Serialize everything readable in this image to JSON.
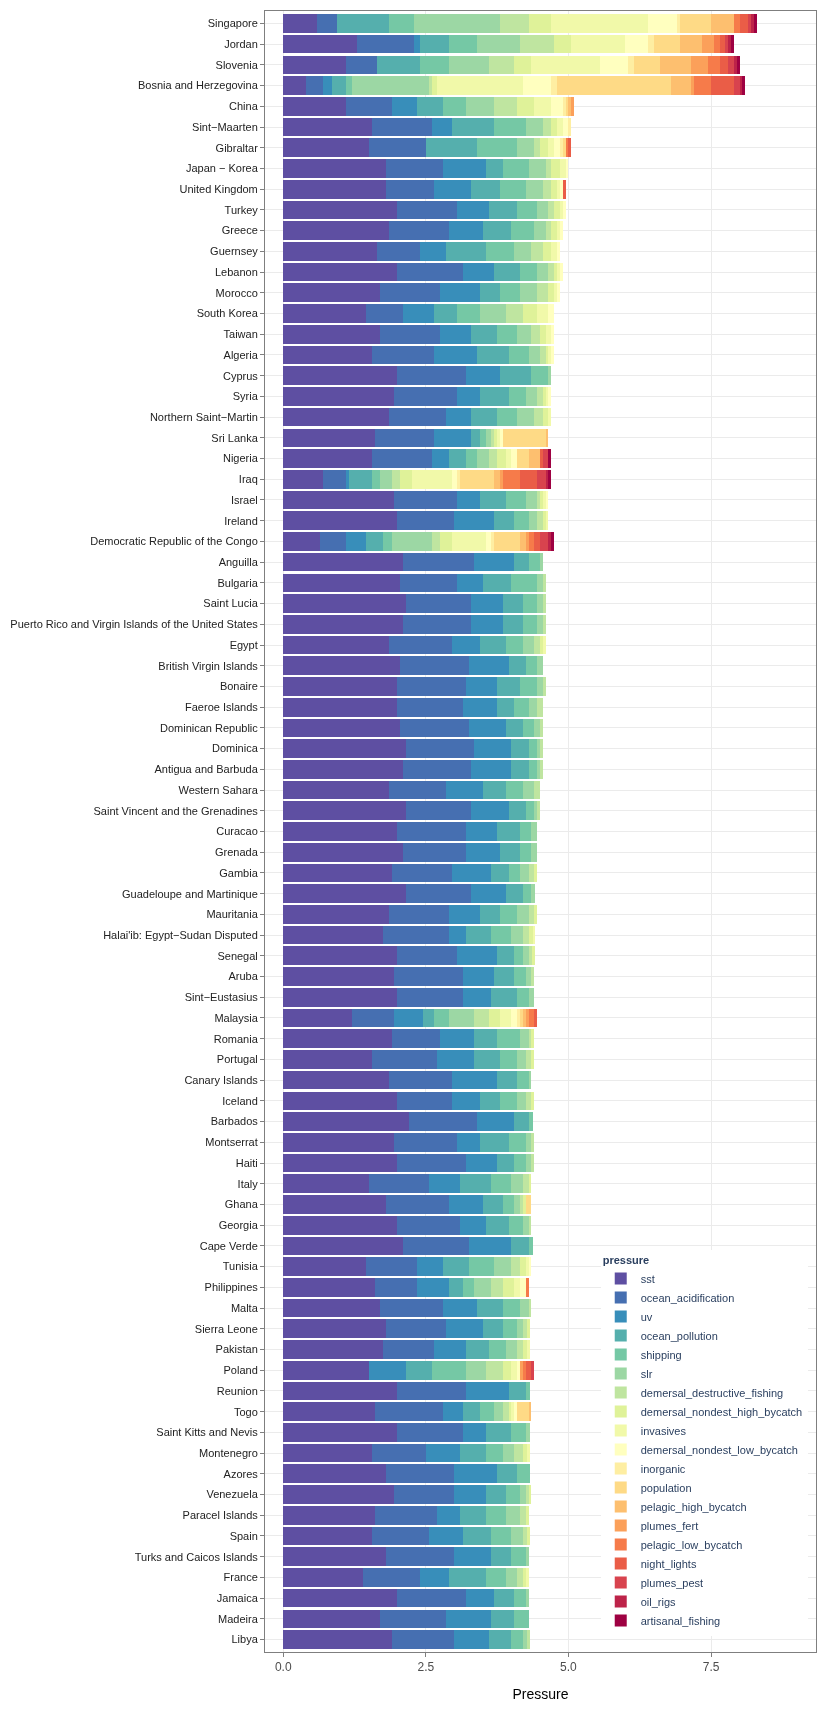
{
  "chart_data": {
    "type": "bar",
    "orientation": "horizontal",
    "stacked": true,
    "xlabel": "Pressure",
    "legend_title": "pressure",
    "legend": "bottom right",
    "grid": true,
    "xlim": [
      -0.32,
      9.34
    ],
    "xticks": [
      {
        "value": 0,
        "label": "0.0"
      },
      2.5,
      {
        "value": 5,
        "label": "5.0"
      },
      7.5
    ],
    "categories": [
      "Singapore",
      "Jordan",
      "Slovenia",
      "Bosnia and Herzegovina",
      "China",
      "Sint−Maarten",
      "Gibraltar",
      "Japan − Korea",
      "United Kingdom",
      "Turkey",
      "Greece",
      "Guernsey",
      "Lebanon",
      "Morocco",
      "South Korea",
      "Taiwan",
      "Algeria",
      "Cyprus",
      "Syria",
      "Northern Saint−Martin",
      "Sri Lanka",
      "Nigeria",
      "Iraq",
      "Israel",
      "Ireland",
      "Democratic Republic of the Congo",
      "Anguilla",
      "Bulgaria",
      "Saint Lucia",
      "Puerto Rico and Virgin Islands of the United States",
      "Egypt",
      "British Virgin Islands",
      "Bonaire",
      "Faeroe Islands",
      "Dominican Republic",
      "Dominica",
      "Antigua and Barbuda",
      "Western Sahara",
      "Saint Vincent and the Grenadines",
      "Curacao",
      "Grenada",
      "Gambia",
      "Guadeloupe and Martinique",
      "Mauritania",
      "Halai'ib: Egypt−Sudan Disputed",
      "Senegal",
      "Aruba",
      "Sint−Eustasius",
      "Malaysia",
      "Romania",
      "Portugal",
      "Canary Islands",
      "Iceland",
      "Barbados",
      "Montserrat",
      "Haiti",
      "Italy",
      "Ghana",
      "Georgia",
      "Cape Verde",
      "Tunisia",
      "Philippines",
      "Malta",
      "Sierra Leone",
      "Pakistan",
      "Poland",
      "Reunion",
      "Togo",
      "Saint Kitts and Nevis",
      "Montenegro",
      "Azores",
      "Venezuela",
      "Paracel Islands",
      "Spain",
      "Turks and Caicos Islands",
      "France",
      "Jamaica",
      "Madeira",
      "Libya"
    ],
    "series": [
      {
        "name": "sst",
        "color": "#5e4fa2",
        "values": [
          0.6,
          1.3,
          1.1,
          0.4,
          1.1,
          1.55,
          1.5,
          1.8,
          1.8,
          2.0,
          1.85,
          1.65,
          2.0,
          1.7,
          1.45,
          1.7,
          1.55,
          2.0,
          1.95,
          1.85,
          1.6,
          1.55,
          0.7,
          1.95,
          2.0,
          0.65,
          2.1,
          2.05,
          2.15,
          2.1,
          1.85,
          2.05,
          2.0,
          2.0,
          2.05,
          2.15,
          2.1,
          1.85,
          2.15,
          2.0,
          2.1,
          1.9,
          2.15,
          1.85,
          1.75,
          2.0,
          1.95,
          2.0,
          1.2,
          1.9,
          1.55,
          1.85,
          2.0,
          2.2,
          1.95,
          2.0,
          1.5,
          1.8,
          2.0,
          2.1,
          1.45,
          1.6,
          1.7,
          1.8,
          1.75,
          1.5,
          2.0,
          1.6,
          2.0,
          1.55,
          1.8,
          1.95,
          1.6,
          1.55,
          1.8,
          1.4,
          2.0,
          1.7,
          1.9
        ]
      },
      {
        "name": "ocean_acidification",
        "color": "#466fb1",
        "values": [
          0.35,
          1.0,
          0.55,
          0.3,
          0.8,
          1.05,
          1.0,
          1.0,
          0.85,
          1.05,
          1.05,
          0.75,
          1.15,
          1.05,
          0.65,
          1.05,
          1.1,
          1.2,
          1.1,
          1.0,
          1.05,
          1.05,
          0.4,
          1.1,
          1.0,
          0.45,
          1.25,
          1.0,
          1.15,
          1.2,
          1.1,
          1.2,
          1.2,
          1.15,
          1.2,
          1.2,
          1.2,
          1.0,
          1.15,
          1.2,
          1.1,
          1.05,
          1.15,
          1.05,
          1.15,
          1.05,
          1.2,
          1.15,
          0.75,
          0.85,
          1.15,
          1.1,
          0.95,
          1.2,
          1.1,
          1.2,
          1.05,
          1.1,
          1.1,
          1.15,
          0.9,
          0.75,
          1.1,
          1.05,
          0.9,
          0,
          1.2,
          1.2,
          1.15,
          0.95,
          1.2,
          1.05,
          1.1,
          1.0,
          1.2,
          1.0,
          1.2,
          1.15,
          1.1
        ]
      },
      {
        "name": "uv",
        "color": "#388eba",
        "values": [
          0,
          0.1,
          0,
          0.15,
          0.45,
          0.35,
          0,
          0.75,
          0.65,
          0.55,
          0.6,
          0.45,
          0.55,
          0.7,
          0.55,
          0.55,
          0.75,
          0.6,
          0.4,
          0.45,
          0.65,
          0.3,
          0.05,
          0.4,
          0.7,
          0.35,
          0.7,
          0.45,
          0.55,
          0.55,
          0.5,
          0.7,
          0.55,
          0.6,
          0.65,
          0.65,
          0.7,
          0.65,
          0.65,
          0.55,
          0.6,
          0.7,
          0.6,
          0.55,
          0.3,
          0.7,
          0.55,
          0.5,
          0.5,
          0.6,
          0.65,
          0.8,
          0.5,
          0.65,
          0.4,
          0.55,
          0.55,
          0.6,
          0.45,
          0.75,
          0.45,
          0.55,
          0.6,
          0.65,
          0.55,
          0.65,
          0.75,
          0.35,
          0.4,
          0.6,
          0.75,
          0.55,
          0.4,
          0.6,
          0.65,
          0.5,
          0.5,
          0.8,
          0.6
        ]
      },
      {
        "name": "ocean_pollution",
        "color": "#55afad",
        "values": [
          0.9,
          0.5,
          0.75,
          0.25,
          0.45,
          0.75,
          0.9,
          0.3,
          0.5,
          0.5,
          0.5,
          0.7,
          0.45,
          0.35,
          0.4,
          0.45,
          0.55,
          0.55,
          0.5,
          0.45,
          0.15,
          0.3,
          0.4,
          0.45,
          0.35,
          0.3,
          0.25,
          0.5,
          0.35,
          0.35,
          0.45,
          0.3,
          0.4,
          0.3,
          0.3,
          0.3,
          0.3,
          0.4,
          0.3,
          0.4,
          0.35,
          0.3,
          0.3,
          0.35,
          0.45,
          0.3,
          0.35,
          0.45,
          0.2,
          0.4,
          0.45,
          0.35,
          0.35,
          0.25,
          0.5,
          0.3,
          0.55,
          0.35,
          0.4,
          0.3,
          0.45,
          0.25,
          0.45,
          0.35,
          0.4,
          0.45,
          0.3,
          0.3,
          0.45,
          0.45,
          0.35,
          0.35,
          0.45,
          0.5,
          0.35,
          0.65,
          0.35,
          0.4,
          0.4
        ]
      },
      {
        "name": "shipping",
        "color": "#75c8a5",
        "values": [
          0.45,
          0.5,
          0.5,
          0.1,
          0.4,
          0.55,
          0.7,
          0.45,
          0.45,
          0.35,
          0.4,
          0.5,
          0.3,
          0.35,
          0.4,
          0.35,
          0.35,
          0.3,
          0.3,
          0.35,
          0.1,
          0.2,
          0.15,
          0.35,
          0.25,
          0.15,
          0.2,
          0.45,
          0.25,
          0.25,
          0.3,
          0.2,
          0.3,
          0.25,
          0.2,
          0.15,
          0.15,
          0.3,
          0.15,
          0.2,
          0.2,
          0.2,
          0.15,
          0.3,
          0.35,
          0.15,
          0.2,
          0.2,
          0.25,
          0.4,
          0.3,
          0.2,
          0.3,
          0.07,
          0.3,
          0.2,
          0.35,
          0.2,
          0.25,
          0.08,
          0.45,
          0.2,
          0.3,
          0.25,
          0.3,
          0.6,
          0.08,
          0.25,
          0.25,
          0.3,
          0.22,
          0.25,
          0.35,
          0.35,
          0.25,
          0.35,
          0.2,
          0.25,
          0.2
        ]
      },
      {
        "name": "slr",
        "color": "#9cd7a4",
        "values": [
          1.5,
          0.75,
          0.7,
          1.35,
          0.5,
          0.3,
          0.3,
          0.3,
          0.3,
          0.2,
          0.2,
          0.3,
          0.2,
          0.3,
          0.45,
          0.25,
          0.2,
          0.05,
          0.2,
          0.3,
          0.1,
          0.2,
          0.2,
          0.2,
          0.15,
          0.7,
          0.05,
          0.1,
          0.1,
          0.1,
          0.2,
          0.1,
          0.1,
          0.15,
          0.1,
          0.05,
          0.05,
          0.2,
          0.05,
          0.1,
          0.1,
          0.15,
          0.07,
          0.2,
          0.2,
          0.1,
          0.1,
          0.1,
          0.45,
          0.15,
          0.15,
          0.05,
          0.15,
          0,
          0.1,
          0.1,
          0.2,
          0.1,
          0.1,
          0,
          0.3,
          0.3,
          0.15,
          0.1,
          0.2,
          0.35,
          0,
          0.15,
          0.07,
          0.2,
          0,
          0.1,
          0.25,
          0.2,
          0.05,
          0.2,
          0.05,
          0,
          0.07
        ]
      },
      {
        "name": "demersal_destructive_fishing",
        "color": "#bfe5a0",
        "values": [
          0.5,
          0.6,
          0.45,
          0.05,
          0.4,
          0.15,
          0.1,
          0.1,
          0.15,
          0.1,
          0.1,
          0.2,
          0.1,
          0.2,
          0.3,
          0.15,
          0.1,
          0,
          0.1,
          0.15,
          0.05,
          0.15,
          0.15,
          0.05,
          0.1,
          0.15,
          0,
          0.05,
          0.05,
          0.05,
          0.1,
          0,
          0.05,
          0.1,
          0.05,
          0.05,
          0.05,
          0.1,
          0.05,
          0,
          0,
          0.1,
          0,
          0.1,
          0.1,
          0.06,
          0.05,
          0,
          0.25,
          0.05,
          0.1,
          0,
          0.1,
          0,
          0.05,
          0.05,
          0.1,
          0.05,
          0.05,
          0,
          0.15,
          0.2,
          0.05,
          0.07,
          0.1,
          0.3,
          0,
          0.1,
          0,
          0.15,
          0,
          0.05,
          0.1,
          0.07,
          0,
          0.1,
          0,
          0,
          0.05
        ]
      },
      {
        "name": "demersal_nondest_high_bycatch",
        "color": "#dff299",
        "values": [
          0.4,
          0.3,
          0.3,
          0.1,
          0.3,
          0.1,
          0.15,
          0.15,
          0.1,
          0.1,
          0.1,
          0.15,
          0.05,
          0.1,
          0.25,
          0.1,
          0.05,
          0,
          0.05,
          0.1,
          0.05,
          0.15,
          0.2,
          0.05,
          0.05,
          0.2,
          0,
          0,
          0,
          0,
          0.05,
          0,
          0,
          0,
          0,
          0,
          0,
          0,
          0,
          0,
          0,
          0.05,
          0,
          0.05,
          0.07,
          0.05,
          0,
          0,
          0.2,
          0.05,
          0.05,
          0,
          0.05,
          0,
          0,
          0,
          0.05,
          0.05,
          0,
          0,
          0.1,
          0.2,
          0,
          0.05,
          0.07,
          0.15,
          0,
          0.05,
          0,
          0.07,
          0,
          0.05,
          0.05,
          0.05,
          0,
          0.05,
          0,
          0,
          0
        ]
      },
      {
        "name": "invasives",
        "color": "#f1f9a9",
        "values": [
          1.7,
          0.95,
          1.2,
          1.5,
          0.3,
          0.1,
          0.1,
          0.1,
          0.05,
          0.05,
          0.05,
          0.1,
          0.05,
          0.05,
          0.2,
          0.1,
          0.05,
          0,
          0.05,
          0.05,
          0.05,
          0.1,
          0.7,
          0.05,
          0.05,
          0.6,
          0,
          0,
          0,
          0,
          0.05,
          0,
          0,
          0,
          0,
          0,
          0,
          0,
          0,
          0,
          0,
          0,
          0,
          0,
          0.05,
          0,
          0,
          0,
          0.2,
          0,
          0,
          0,
          0,
          0,
          0,
          0,
          0,
          0,
          0,
          0,
          0.05,
          0.1,
          0,
          0,
          0.05,
          0.1,
          0,
          0.05,
          0,
          0.05,
          0,
          0,
          0,
          0,
          0,
          0.05,
          0,
          0,
          0
        ]
      },
      {
        "name": "demersal_nondest_low_bycatch",
        "color": "#ffffbf",
        "values": [
          0.5,
          0.4,
          0.5,
          0.5,
          0.2,
          0.1,
          0.1,
          0.05,
          0.05,
          0.05,
          0.05,
          0.05,
          0.05,
          0.05,
          0.1,
          0.05,
          0.05,
          0,
          0.05,
          0,
          0.05,
          0.1,
          0.1,
          0.05,
          0,
          0.1,
          0,
          0,
          0,
          0,
          0,
          0,
          0,
          0,
          0,
          0,
          0,
          0,
          0,
          0,
          0,
          0,
          0,
          0,
          0,
          0,
          0,
          0,
          0.1,
          0,
          0,
          0,
          0,
          0,
          0,
          0,
          0,
          0,
          0,
          0,
          0.05,
          0.1,
          0,
          0,
          0,
          0.05,
          0,
          0.05,
          0,
          0,
          0,
          0,
          0,
          0,
          0,
          0,
          0,
          0,
          0
        ]
      },
      {
        "name": "inorganic",
        "color": "#feeea2",
        "values": [
          0.05,
          0.1,
          0.1,
          0.1,
          0.05,
          0.05,
          0.05,
          0,
          0,
          0,
          0,
          0,
          0,
          0,
          0,
          0,
          0,
          0,
          0,
          0,
          0,
          0,
          0.05,
          0,
          0,
          0.05,
          0,
          0,
          0,
          0,
          0,
          0,
          0,
          0,
          0,
          0,
          0,
          0,
          0,
          0,
          0,
          0,
          0,
          0,
          0,
          0,
          0,
          0,
          0.05,
          0,
          0,
          0,
          0,
          0,
          0,
          0,
          0,
          0,
          0,
          0,
          0,
          0,
          0,
          0,
          0,
          0,
          0,
          0,
          0,
          0,
          0,
          0,
          0,
          0,
          0,
          0,
          0,
          0,
          0
        ]
      },
      {
        "name": "population",
        "color": "#feda86",
        "values": [
          0.55,
          0.45,
          0.45,
          2.0,
          0.05,
          0,
          0.05,
          0,
          0,
          0,
          0,
          0,
          0,
          0,
          0,
          0,
          0,
          0,
          0,
          0,
          0.75,
          0.2,
          0.6,
          0,
          0,
          0.45,
          0,
          0,
          0,
          0,
          0,
          0,
          0,
          0,
          0,
          0,
          0,
          0,
          0,
          0,
          0,
          0,
          0,
          0,
          0,
          0,
          0,
          0,
          0.05,
          0,
          0,
          0,
          0,
          0,
          0,
          0,
          0,
          0.1,
          0,
          0,
          0,
          0,
          0,
          0,
          0,
          0,
          0,
          0.2,
          0,
          0,
          0,
          0,
          0,
          0,
          0,
          0,
          0,
          0,
          0
        ]
      },
      {
        "name": "pelagic_high_bycatch",
        "color": "#fdbf6f",
        "values": [
          0.4,
          0.4,
          0.55,
          0.35,
          0.05,
          0,
          0,
          0,
          0,
          0,
          0,
          0,
          0,
          0,
          0,
          0,
          0,
          0,
          0,
          0,
          0.05,
          0.2,
          0.1,
          0,
          0,
          0.1,
          0,
          0,
          0,
          0,
          0,
          0,
          0,
          0,
          0,
          0,
          0,
          0,
          0,
          0,
          0,
          0,
          0,
          0,
          0,
          0,
          0,
          0,
          0.05,
          0,
          0,
          0,
          0,
          0,
          0,
          0,
          0,
          0,
          0,
          0,
          0,
          0,
          0,
          0,
          0,
          0,
          0,
          0.05,
          0,
          0,
          0,
          0,
          0,
          0,
          0,
          0,
          0,
          0,
          0
        ]
      },
      {
        "name": "plumes_fert",
        "color": "#fba05a",
        "values": [
          0,
          0.2,
          0.3,
          0.05,
          0.05,
          0,
          0,
          0,
          0,
          0,
          0,
          0,
          0,
          0,
          0,
          0,
          0,
          0,
          0,
          0,
          0,
          0,
          0.05,
          0,
          0,
          0.05,
          0,
          0,
          0,
          0,
          0,
          0,
          0,
          0,
          0,
          0,
          0,
          0,
          0,
          0,
          0,
          0,
          0,
          0,
          0,
          0,
          0,
          0,
          0.05,
          0,
          0,
          0,
          0,
          0,
          0,
          0,
          0,
          0,
          0,
          0,
          0,
          0,
          0,
          0,
          0,
          0.05,
          0,
          0,
          0,
          0,
          0,
          0,
          0,
          0,
          0,
          0,
          0,
          0,
          0
        ]
      },
      {
        "name": "pelagic_low_bycatch",
        "color": "#f67b4a",
        "values": [
          0.1,
          0.1,
          0.2,
          0.3,
          0,
          0,
          0.05,
          0,
          0,
          0,
          0,
          0,
          0,
          0,
          0,
          0,
          0,
          0,
          0,
          0,
          0,
          0,
          0.3,
          0,
          0,
          0.1,
          0,
          0,
          0,
          0,
          0,
          0,
          0,
          0,
          0,
          0,
          0,
          0,
          0,
          0,
          0,
          0,
          0,
          0,
          0,
          0,
          0,
          0,
          0.1,
          0,
          0,
          0,
          0,
          0,
          0,
          0,
          0,
          0,
          0,
          0,
          0,
          0.05,
          0,
          0,
          0,
          0.05,
          0,
          0,
          0,
          0,
          0,
          0,
          0,
          0,
          0,
          0,
          0,
          0,
          0
        ]
      },
      {
        "name": "night_lights",
        "color": "#ea5d47",
        "values": [
          0.15,
          0.1,
          0.15,
          0.4,
          0,
          0,
          0.05,
          0,
          0.05,
          0,
          0,
          0,
          0,
          0,
          0,
          0,
          0,
          0,
          0,
          0,
          0,
          0.05,
          0.3,
          0,
          0,
          0.1,
          0,
          0,
          0,
          0,
          0,
          0,
          0,
          0,
          0,
          0,
          0,
          0,
          0,
          0,
          0,
          0,
          0,
          0,
          0,
          0,
          0,
          0,
          0.05,
          0,
          0,
          0,
          0,
          0,
          0,
          0,
          0,
          0,
          0,
          0,
          0,
          0,
          0,
          0,
          0,
          0.1,
          0,
          0,
          0,
          0,
          0,
          0,
          0,
          0,
          0,
          0,
          0,
          0,
          0
        ]
      },
      {
        "name": "plumes_pest",
        "color": "#d8434e",
        "values": [
          0.05,
          0.05,
          0.1,
          0.1,
          0,
          0,
          0,
          0,
          0,
          0,
          0,
          0,
          0,
          0,
          0,
          0,
          0,
          0,
          0,
          0,
          0,
          0.1,
          0.15,
          0,
          0,
          0.15,
          0,
          0,
          0,
          0,
          0,
          0,
          0,
          0,
          0,
          0,
          0,
          0,
          0,
          0,
          0,
          0,
          0,
          0,
          0,
          0,
          0,
          0,
          0,
          0,
          0,
          0,
          0,
          0,
          0,
          0,
          0,
          0,
          0,
          0,
          0,
          0,
          0,
          0,
          0,
          0.05,
          0,
          0,
          0,
          0,
          0,
          0,
          0,
          0,
          0,
          0,
          0,
          0,
          0
        ]
      },
      {
        "name": "oil_rigs",
        "color": "#bd2349",
        "values": [
          0.05,
          0.05,
          0.05,
          0.05,
          0,
          0,
          0,
          0,
          0,
          0,
          0,
          0,
          0,
          0,
          0,
          0,
          0,
          0,
          0,
          0,
          0,
          0,
          0.05,
          0,
          0,
          0.05,
          0,
          0,
          0,
          0,
          0,
          0,
          0,
          0,
          0,
          0,
          0,
          0,
          0,
          0,
          0,
          0,
          0,
          0,
          0,
          0,
          0,
          0,
          0,
          0,
          0,
          0,
          0,
          0,
          0,
          0,
          0,
          0,
          0,
          0,
          0,
          0,
          0,
          0,
          0,
          0,
          0,
          0,
          0,
          0,
          0,
          0,
          0,
          0,
          0,
          0,
          0,
          0,
          0
        ]
      },
      {
        "name": "artisanal_fishing",
        "color": "#9e0142",
        "values": [
          0.05,
          0.05,
          0.05,
          0.05,
          0,
          0,
          0,
          0,
          0,
          0,
          0,
          0,
          0,
          0,
          0,
          0,
          0,
          0,
          0,
          0,
          0,
          0.05,
          0.05,
          0,
          0,
          0.05,
          0,
          0,
          0,
          0,
          0,
          0,
          0,
          0,
          0,
          0,
          0,
          0,
          0,
          0,
          0,
          0,
          0,
          0,
          0,
          0,
          0,
          0,
          0,
          0,
          0,
          0,
          0,
          0,
          0,
          0,
          0,
          0,
          0,
          0,
          0,
          0,
          0,
          0,
          0,
          0,
          0,
          0,
          0,
          0,
          0,
          0,
          0,
          0,
          0,
          0,
          0,
          0,
          0
        ]
      }
    ]
  }
}
